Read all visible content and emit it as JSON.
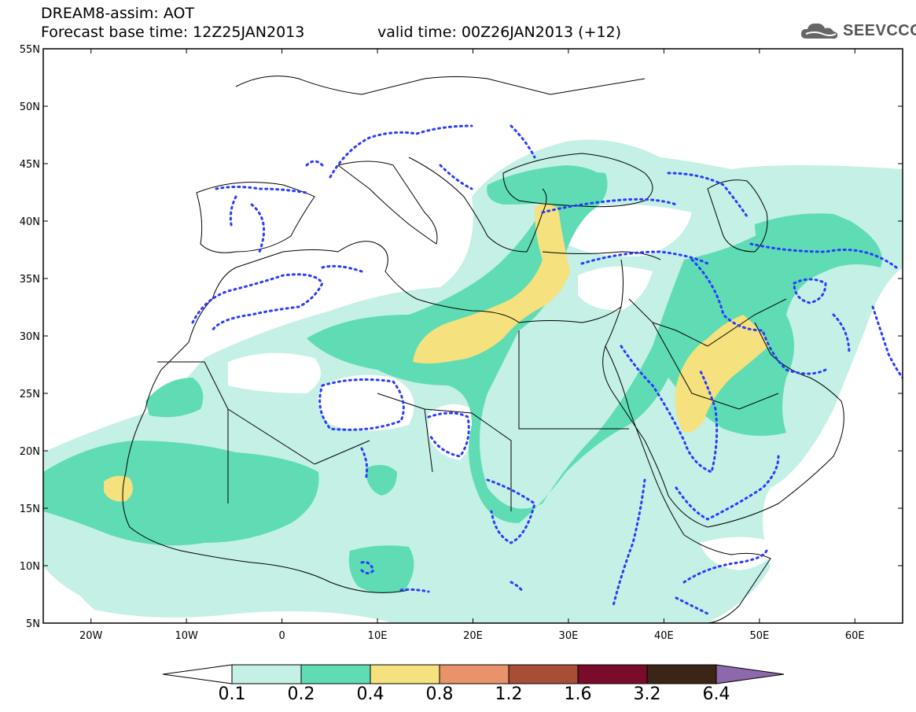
{
  "header": {
    "line1": "DREAM8-assim: AOT",
    "line2": "Forecast base time: 12Z25JAN2013",
    "valid": "valid time: 00Z26JAN2013 (+12)"
  },
  "logo": {
    "icon": "cloud-logo-icon",
    "text": "SEEVCCC"
  },
  "map": {
    "lon_range": [
      -25,
      65
    ],
    "lat_range": [
      5,
      55
    ],
    "lat_labels": [
      "55N",
      "50N",
      "45N",
      "40N",
      "35N",
      "30N",
      "25N",
      "20N",
      "15N",
      "10N",
      "5N"
    ],
    "lat_values": [
      55,
      50,
      45,
      40,
      35,
      30,
      25,
      20,
      15,
      10,
      5
    ],
    "lon_labels": [
      "20W",
      "10W",
      "0",
      "10E",
      "20E",
      "30E",
      "40E",
      "50E",
      "60E"
    ],
    "lon_values": [
      -20,
      -10,
      0,
      10,
      20,
      30,
      40,
      50,
      60
    ]
  },
  "colorbar": {
    "labels": [
      "0.1",
      "0.2",
      "0.4",
      "0.8",
      "1.2",
      "1.6",
      "3.2",
      "6.4"
    ],
    "colors": [
      "#ffffff",
      "#c4f0e6",
      "#5fdcb4",
      "#f5e17d",
      "#e9936a",
      "#a84d36",
      "#7a0b2a",
      "#3c2416",
      "#8d68ad"
    ]
  },
  "contour_color": "#2a3bff"
}
